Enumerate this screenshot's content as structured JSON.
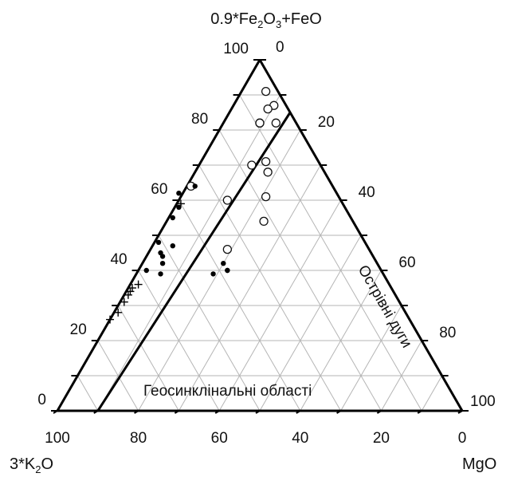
{
  "chart_data": {
    "type": "scatter",
    "subtype": "ternary",
    "vertices": {
      "top": {
        "label_parts": [
          "0.9*Fe",
          "2",
          "O",
          "3",
          "+FeO"
        ]
      },
      "left": {
        "label_parts": [
          "3*K",
          "2",
          "O"
        ]
      },
      "right": {
        "label_parts": [
          "MgO"
        ]
      }
    },
    "bottom_ticks": [
      "100",
      "80",
      "60",
      "40",
      "20",
      "0"
    ],
    "left_ticks": [
      "0",
      "20",
      "40",
      "60",
      "80",
      "100"
    ],
    "right_ticks": [
      "0",
      "20",
      "40",
      "60",
      "80",
      "100"
    ],
    "grid": true,
    "grid_step": 10,
    "regions": [
      {
        "label": "Острівні дуги"
      },
      {
        "label": "Геосинклінальні області"
      }
    ],
    "boundary_line": {
      "from_fe": 85,
      "from_mgo": 15,
      "to_fe": 0,
      "to_mgo": 10
    },
    "series": [
      {
        "marker": "open-circle",
        "points": [
          {
            "fe": 91,
            "mgo": 6
          },
          {
            "fe": 87,
            "mgo": 10
          },
          {
            "fe": 86,
            "mgo": 9
          },
          {
            "fe": 82,
            "mgo": 9
          },
          {
            "fe": 82,
            "mgo": 9
          },
          {
            "fe": 82,
            "mgo": 13
          },
          {
            "fe": 70,
            "mgo": 13
          },
          {
            "fe": 71,
            "mgo": 16
          },
          {
            "fe": 68,
            "mgo": 18
          },
          {
            "fe": 60,
            "mgo": 12
          },
          {
            "fe": 54,
            "mgo": 24
          },
          {
            "fe": 64,
            "mgo": 1
          },
          {
            "fe": 61,
            "mgo": 21
          },
          {
            "fe": 46,
            "mgo": 19
          }
        ]
      },
      {
        "marker": "filled-dot",
        "points": [
          {
            "fe": 64,
            "mgo": 2
          },
          {
            "fe": 62,
            "mgo": -1
          },
          {
            "fe": 58,
            "mgo": 1
          },
          {
            "fe": 55,
            "mgo": 1
          },
          {
            "fe": 48,
            "mgo": 1
          },
          {
            "fe": 45,
            "mgo": 3
          },
          {
            "fe": 47,
            "mgo": 5
          },
          {
            "fe": 42,
            "mgo": 5
          },
          {
            "fe": 40,
            "mgo": 2
          },
          {
            "fe": 39,
            "mgo": 6
          },
          {
            "fe": 44,
            "mgo": 4
          },
          {
            "fe": 42,
            "mgo": 20
          },
          {
            "fe": 39,
            "mgo": 19
          },
          {
            "fe": 40,
            "mgo": 22
          },
          {
            "fe": 40,
            "mgo": 22
          }
        ]
      },
      {
        "marker": "cross",
        "points": [
          {
            "fe": 36,
            "mgo": 2
          },
          {
            "fe": 35,
            "mgo": 1
          },
          {
            "fe": 34,
            "mgo": 1
          },
          {
            "fe": 33,
            "mgo": 1
          },
          {
            "fe": 31,
            "mgo": 1
          },
          {
            "fe": 28,
            "mgo": 1
          },
          {
            "fe": 26,
            "mgo": 0
          },
          {
            "fe": 59,
            "mgo": 1
          }
        ]
      }
    ]
  }
}
